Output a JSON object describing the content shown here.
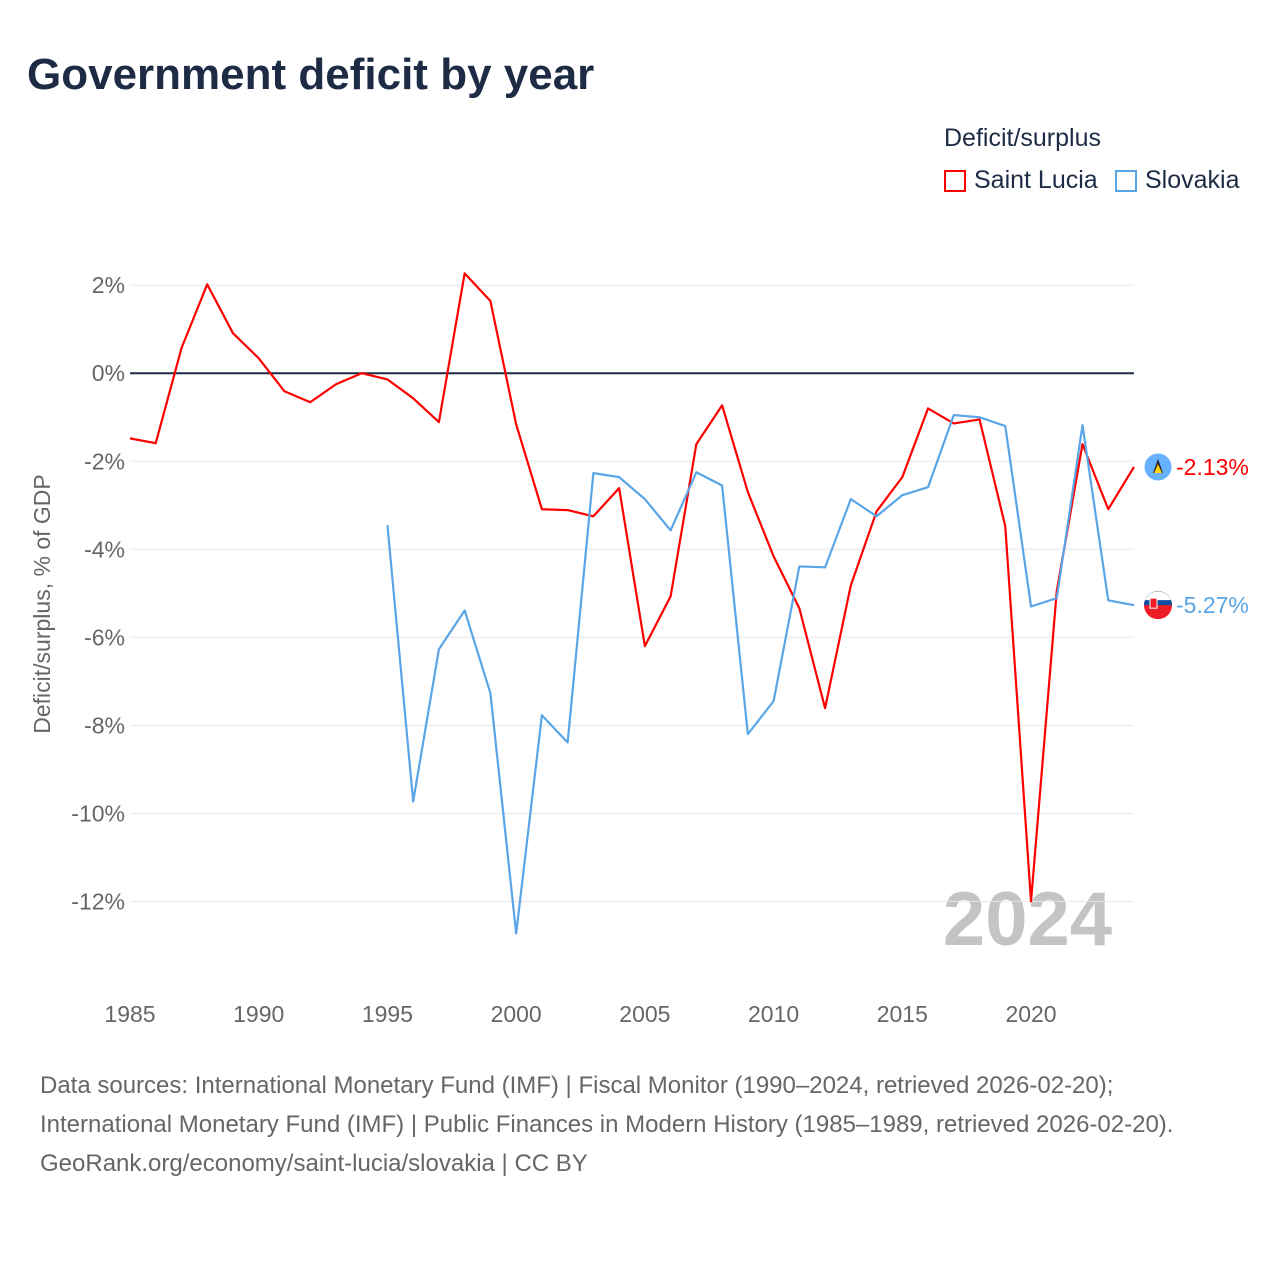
{
  "title": "Government deficit by year",
  "legend": {
    "title": "Deficit/surplus",
    "items": [
      {
        "label": "Saint Lucia",
        "color": "#ff0000"
      },
      {
        "label": "Slovakia",
        "color": "#5aa5e6"
      }
    ]
  },
  "footer": {
    "sources": "Data sources: International Monetary Fund (IMF) | Fiscal Monitor (1990–2024, retrieved 2026-02-20); International Monetary Fund (IMF) | Public Finances in Modern History (1985–1989, retrieved 2026-02-20).",
    "credit": "GeoRank.org/economy/saint-lucia/slovakia | CC BY"
  },
  "chart_data": {
    "type": "line",
    "title": "Government deficit by year",
    "xlabel": "",
    "ylabel": "Deficit/surplus, % of GDP",
    "xlim": [
      1985,
      2024
    ],
    "ylim": [
      -13.4,
      2.8
    ],
    "x_ticks": [
      1985,
      1990,
      1995,
      2000,
      2005,
      2010,
      2015,
      2020
    ],
    "y_ticks": [
      2,
      0,
      -2,
      -4,
      -6,
      -8,
      -10,
      -12
    ],
    "y_tick_labels": [
      "2%",
      "0%",
      "-2%",
      "-4%",
      "-6%",
      "-8%",
      "-10%",
      "-12%"
    ],
    "year_watermark": "2024",
    "series": [
      {
        "name": "Saint Lucia",
        "color": "#ff0000",
        "end_label": "-2.13%",
        "x": [
          1985,
          1986,
          1987,
          1988,
          1989,
          1990,
          1991,
          1992,
          1993,
          1994,
          1995,
          1996,
          1997,
          1998,
          1999,
          2000,
          2001,
          2002,
          2003,
          2004,
          2005,
          2006,
          2007,
          2008,
          2009,
          2010,
          2011,
          2012,
          2013,
          2014,
          2015,
          2016,
          2017,
          2018,
          2019,
          2020,
          2021,
          2022,
          2023,
          2024
        ],
        "values": [
          -1.48,
          -1.59,
          0.57,
          2.02,
          0.91,
          0.34,
          -0.41,
          -0.66,
          -0.25,
          0.0,
          -0.14,
          -0.57,
          -1.11,
          2.27,
          1.64,
          -1.16,
          -3.09,
          -3.11,
          -3.25,
          -2.61,
          -6.2,
          -5.07,
          -1.61,
          -0.73,
          -2.7,
          -4.16,
          -5.34,
          -7.61,
          -4.82,
          -3.14,
          -2.36,
          -0.8,
          -1.14,
          -1.05,
          -3.48,
          -12.0,
          -4.95,
          -1.61,
          -3.09,
          -2.13
        ]
      },
      {
        "name": "Slovakia",
        "color": "#5aa5e6",
        "end_label": "-5.27%",
        "x": [
          1995,
          1996,
          1997,
          1998,
          1999,
          2000,
          2001,
          2002,
          2003,
          2004,
          2005,
          2006,
          2007,
          2008,
          2009,
          2010,
          2011,
          2012,
          2013,
          2014,
          2015,
          2016,
          2017,
          2018,
          2019,
          2020,
          2021,
          2022,
          2023,
          2024
        ],
        "values": [
          -3.45,
          -9.73,
          -6.27,
          -5.39,
          -7.27,
          -12.73,
          -7.77,
          -8.39,
          -2.27,
          -2.36,
          -2.86,
          -3.57,
          -2.25,
          -2.55,
          -8.2,
          -7.45,
          -4.39,
          -4.41,
          -2.86,
          -3.25,
          -2.77,
          -2.59,
          -0.95,
          -1.0,
          -1.2,
          -5.3,
          -5.11,
          -1.18,
          -5.16,
          -5.27
        ]
      }
    ]
  }
}
